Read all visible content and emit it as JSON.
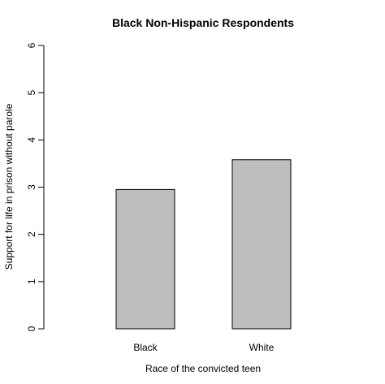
{
  "chart_data": {
    "type": "bar",
    "title": "Black Non-Hispanic Respondents",
    "xlabel": "Race of the convicted teen",
    "ylabel": "Support for life in prison without parole",
    "categories": [
      "Black",
      "White"
    ],
    "values": [
      2.95,
      3.58
    ],
    "ylim": [
      0,
      6
    ],
    "yticks": [
      0,
      1,
      2,
      3,
      4,
      5,
      6
    ],
    "ytick_labels": [
      "0",
      "1",
      "2",
      "3",
      "4",
      "5",
      "6"
    ],
    "bar_color": "#bebebe",
    "grid": false,
    "legend": "none"
  }
}
